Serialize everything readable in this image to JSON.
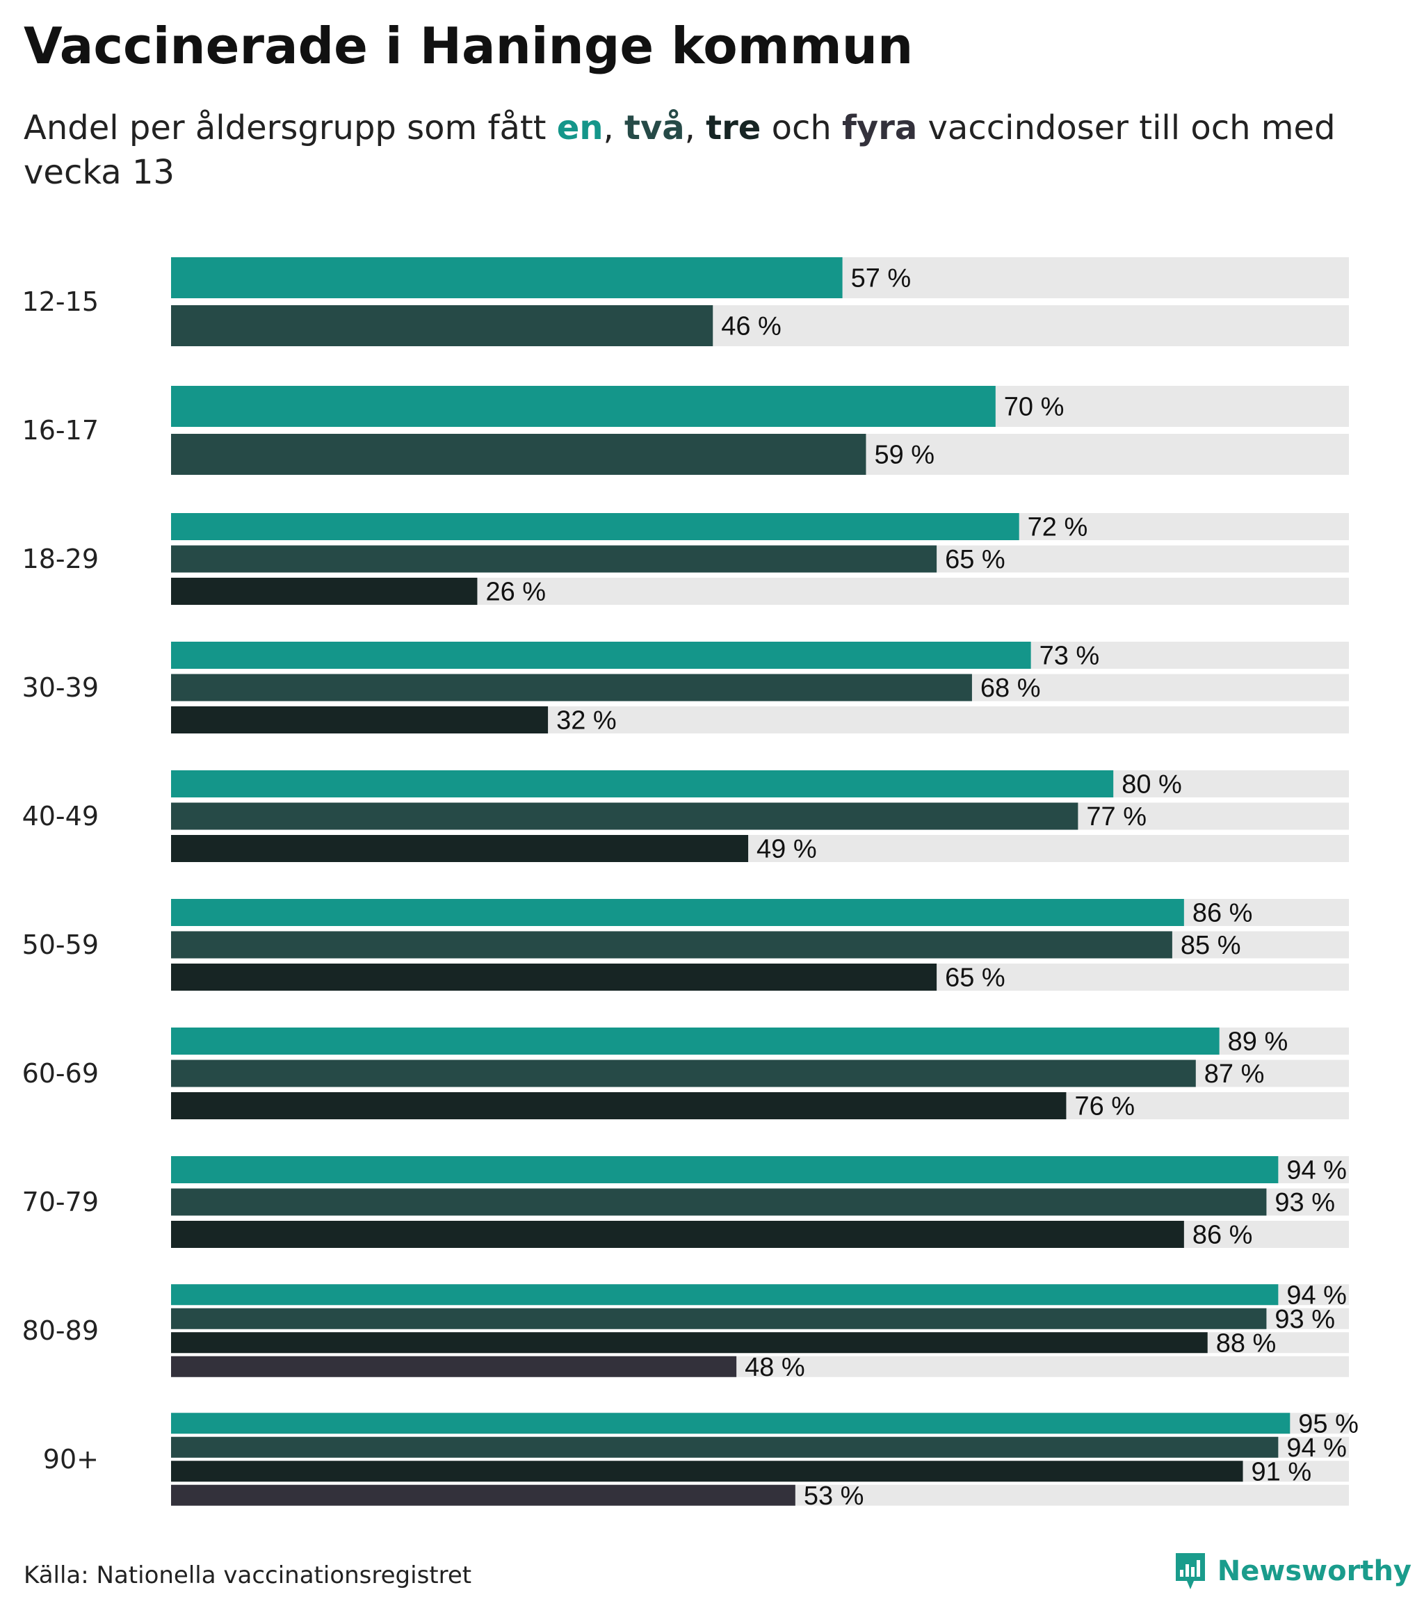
{
  "title": "Vaccinerade i Haninge kommun",
  "subtitle": {
    "part1": "Andel per åldersgrupp som fått ",
    "one": "en",
    "sep1": ", ",
    "two": "två",
    "sep2": ", ",
    "three": "tre",
    "and": " och ",
    "four": "fyra",
    "part2": " vaccindoser till och med vecka 13"
  },
  "source": "Källa: Nationella vaccinationsregistret",
  "logo": {
    "text": "Newsworthy",
    "icon": "newsworthy-logo-icon"
  },
  "colors": {
    "one_dose": "#14968a",
    "two_doses": "#264a47",
    "three_doses": "#172524",
    "four_doses": "#33313b",
    "track": "#e8e8e8",
    "logo": "#1a9c8c"
  },
  "chart_data": {
    "type": "bar",
    "orientation": "horizontal",
    "title": "Vaccinerade i Haninge kommun",
    "subtitle": "Andel per åldersgrupp som fått en, två, tre och fyra vaccindoser till och med vecka 13",
    "xlim": [
      0,
      100
    ],
    "value_suffix": " %",
    "grid": false,
    "legend": "none (series identified by colored words in subtitle)",
    "categories": [
      "12-15",
      "16-17",
      "18-29",
      "30-39",
      "40-49",
      "50-59",
      "60-69",
      "70-79",
      "80-89",
      "90+"
    ],
    "series": [
      {
        "name": "en",
        "color": "#14968a",
        "values": [
          57,
          70,
          72,
          73,
          80,
          86,
          89,
          94,
          94,
          95
        ]
      },
      {
        "name": "två",
        "color": "#264a47",
        "values": [
          46,
          59,
          65,
          68,
          77,
          85,
          87,
          93,
          93,
          94
        ]
      },
      {
        "name": "tre",
        "color": "#172524",
        "values": [
          null,
          null,
          26,
          32,
          49,
          65,
          76,
          86,
          88,
          91
        ]
      },
      {
        "name": "fyra",
        "color": "#33313b",
        "values": [
          null,
          null,
          null,
          null,
          null,
          null,
          null,
          null,
          48,
          53
        ]
      }
    ],
    "source": "Källa: Nationella vaccinationsregistret"
  }
}
